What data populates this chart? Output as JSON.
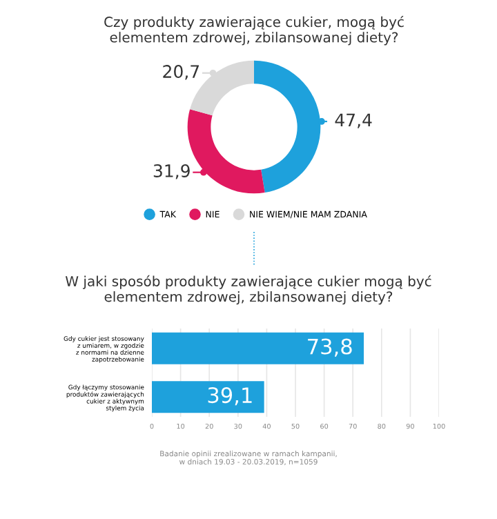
{
  "chart_data": [
    {
      "type": "donut",
      "title": "Czy produkty zawierające cukier, mogą być\nelementem zdrowej, zbilansowanej diety?",
      "categories": [
        "TAK",
        "NIE",
        "NIE WIEM/NIE MAM ZDANIA"
      ],
      "values": [
        47.4,
        31.9,
        20.7
      ],
      "colors": [
        "#1ea1dc",
        "#e0195f",
        "#d9d9d9"
      ],
      "value_labels": [
        "47,4",
        "31,9",
        "20,7"
      ],
      "legend": "bottom"
    },
    {
      "type": "bar",
      "orientation": "horizontal",
      "title": "W jaki sposób produkty zawierające cukier mogą być\nelementem zdrowej, zbilansowanej diety?",
      "categories": [
        "Gdy cukier jest stosowany\nz umiarem, w zgodzie\nz normami na dzienne\nzapotrzebowanie",
        "Gdy łączymy stosowanie\nproduktów zawierających\ncukier z aktywnym\nstylem życia"
      ],
      "values": [
        73.8,
        39.1
      ],
      "color": "#1ea1dc",
      "value_labels": [
        "73,8",
        "39,1"
      ],
      "xlim": [
        0,
        100
      ],
      "xticks": [
        0,
        10,
        20,
        30,
        40,
        50,
        60,
        70,
        80,
        90,
        100
      ],
      "grid": "x",
      "annotations": [
        "Badanie opinii zrealizowane w ramach kampanii,\nw dniach 19.03 - 20.03.2019, n=1059"
      ]
    }
  ]
}
